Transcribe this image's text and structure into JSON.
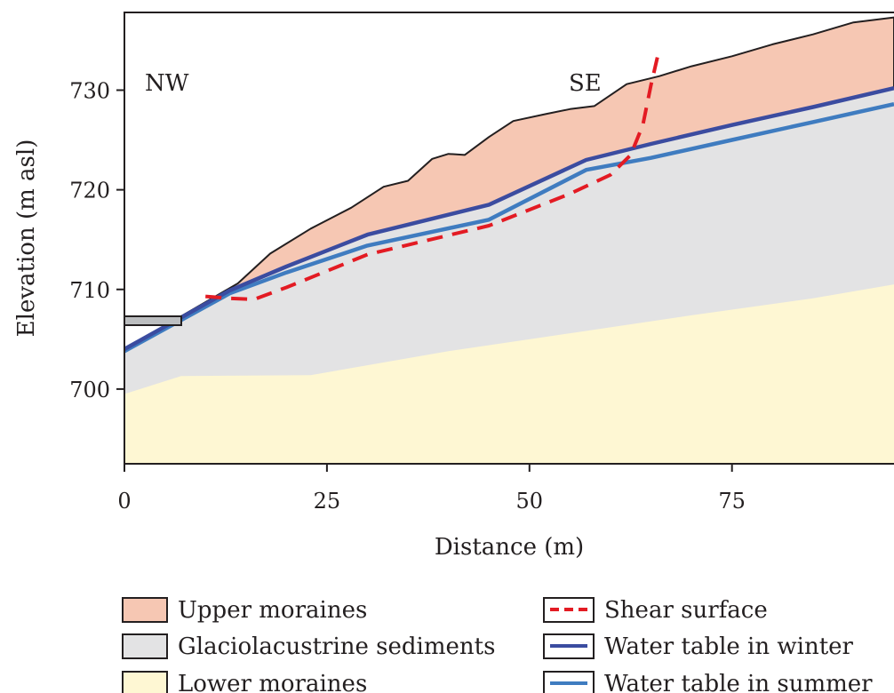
{
  "chart_data": {
    "type": "area",
    "title": "",
    "xlabel": "Distance (m)",
    "ylabel": "Elevation (m asl)",
    "xlim": [
      0,
      95
    ],
    "ylim": [
      692.5,
      737.8
    ],
    "xticks": [
      0,
      25,
      50,
      75
    ],
    "yticks": [
      700,
      710,
      720,
      730
    ],
    "grid": false,
    "legend_placement": "bottom",
    "annotations": [
      {
        "text": "NW",
        "x": 4,
        "y": 731.5
      },
      {
        "text": "SE",
        "x": 58,
        "y": 731.5
      }
    ],
    "areas": [
      {
        "name": "Upper moraines",
        "color": "#f6c7b3",
        "top": [
          [
            0,
            704
          ],
          [
            14,
            710.6
          ],
          [
            18,
            713.6
          ],
          [
            23,
            716.1
          ],
          [
            28,
            718.2
          ],
          [
            32,
            720.3
          ],
          [
            35,
            720.9
          ],
          [
            38,
            723.1
          ],
          [
            40,
            723.6
          ],
          [
            42,
            723.5
          ],
          [
            45,
            725.3
          ],
          [
            48,
            726.9
          ],
          [
            52,
            727.6
          ],
          [
            55,
            728.1
          ],
          [
            58,
            728.4
          ],
          [
            62,
            730.6
          ],
          [
            66,
            731.4
          ],
          [
            70,
            732.4
          ],
          [
            75,
            733.4
          ],
          [
            80,
            734.6
          ],
          [
            85,
            735.6
          ],
          [
            90,
            736.8
          ],
          [
            95,
            737.3
          ]
        ]
      },
      {
        "name": "Glaciolacustrine sediments",
        "color": "#e3e3e4",
        "top": [
          [
            0,
            704
          ],
          [
            13,
            709.9
          ],
          [
            20,
            712.3
          ],
          [
            30,
            715.5
          ],
          [
            45,
            718.5
          ],
          [
            57,
            723
          ],
          [
            65,
            724.6
          ],
          [
            75,
            726.5
          ],
          [
            85,
            728.3
          ],
          [
            95,
            730.2
          ]
        ]
      },
      {
        "name": "Lower moraines",
        "color": "#fef7d3",
        "top": [
          [
            0,
            699.5
          ],
          [
            7,
            701.3
          ],
          [
            23,
            701.4
          ],
          [
            40,
            703.8
          ],
          [
            55,
            705.6
          ],
          [
            70,
            707.4
          ],
          [
            85,
            709.1
          ],
          [
            95,
            710.5
          ]
        ]
      }
    ],
    "series": [
      {
        "name": "Shear surface",
        "style": "dashed",
        "color": "#e31b23",
        "x": [
          10,
          13,
          16,
          20,
          30,
          45,
          55,
          60,
          62.5,
          64,
          65,
          66
        ],
        "y": [
          709.3,
          709.1,
          709,
          710.2,
          713.5,
          716.4,
          719.6,
          721.5,
          723.5,
          726.5,
          730.5,
          734
        ]
      },
      {
        "name": "Water table in winter",
        "style": "solid",
        "color": "#3b4ca0",
        "x": [
          0,
          13,
          20,
          30,
          45,
          57,
          65,
          75,
          85,
          95
        ],
        "y": [
          704,
          709.9,
          712.3,
          715.5,
          718.5,
          723,
          724.6,
          726.5,
          728.3,
          730.2
        ]
      },
      {
        "name": "Water table in summer",
        "style": "solid",
        "color": "#3f7cc0",
        "x": [
          0,
          13,
          20,
          30,
          45,
          57,
          65,
          75,
          85,
          95
        ],
        "y": [
          703.8,
          709.6,
          711.7,
          714.4,
          717,
          722,
          723.2,
          725,
          726.8,
          728.6
        ]
      }
    ],
    "legend": [
      {
        "label": "Upper moraines",
        "kind": "patch",
        "color": "#f6c7b3"
      },
      {
        "label": "Glaciolacustrine sediments",
        "kind": "patch",
        "color": "#e3e3e4"
      },
      {
        "label": "Lower moraines",
        "kind": "patch",
        "color": "#fef7d3"
      },
      {
        "label": "Shear surface",
        "kind": "line-dashed",
        "color": "#e31b23"
      },
      {
        "label": "Water table in winter",
        "kind": "line",
        "color": "#3b4ca0"
      },
      {
        "label": "Water table in summer",
        "kind": "line",
        "color": "#3f7cc0"
      }
    ]
  }
}
